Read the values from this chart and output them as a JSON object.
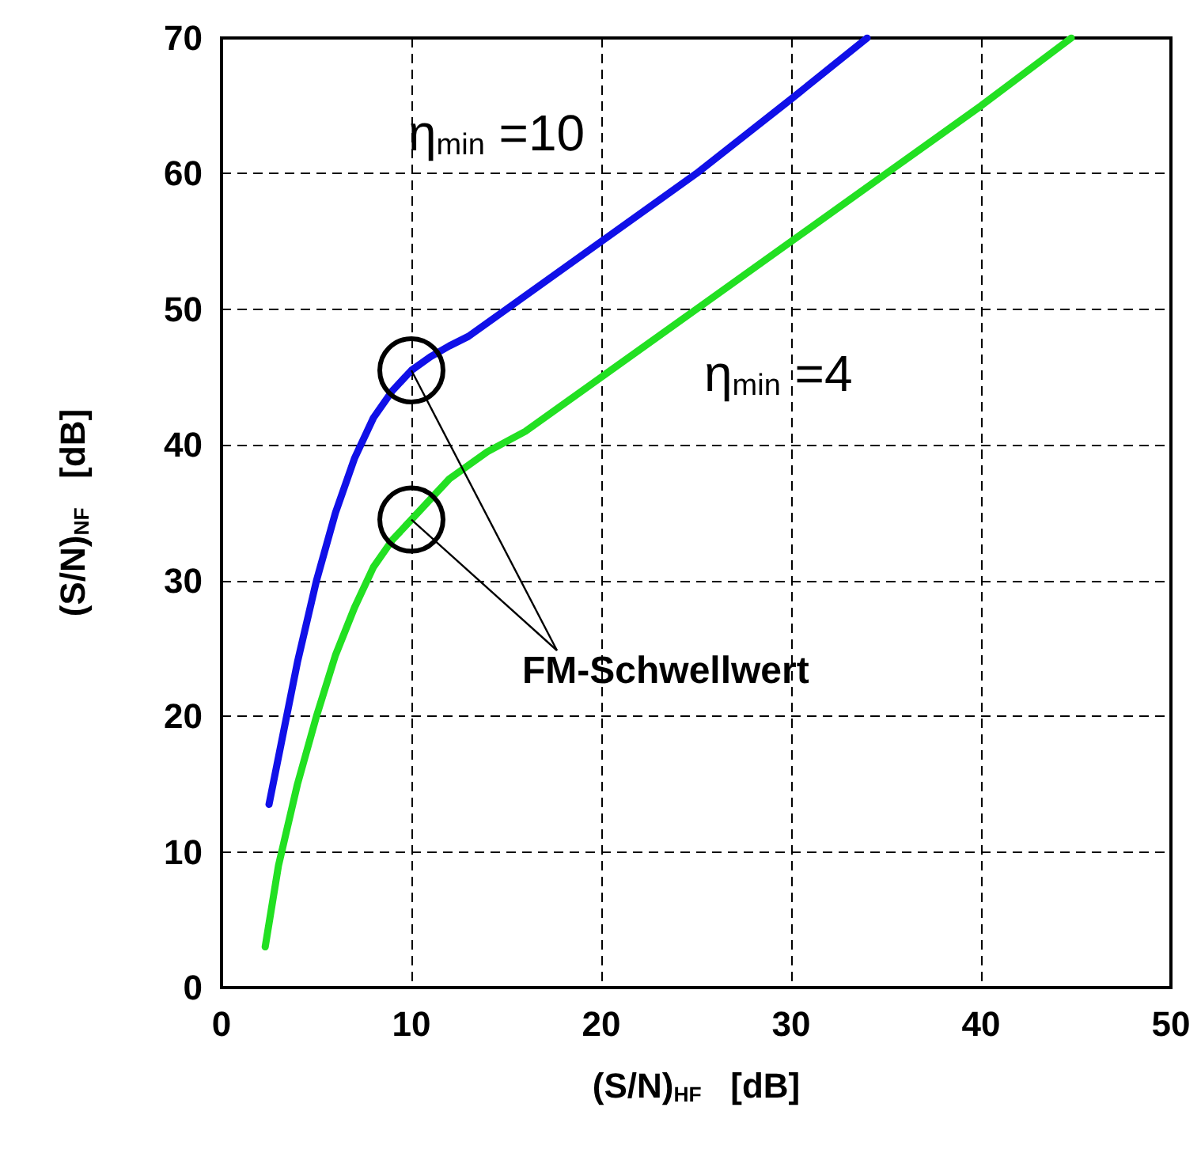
{
  "chart_data": {
    "type": "line",
    "xlabel": "(S/N)$_{HF}$   [dB]",
    "ylabel": "(S/N)$_{NF}$   [dB]",
    "xlim": [
      0,
      50
    ],
    "xticks": [
      0,
      10,
      20,
      30,
      40,
      50
    ],
    "ylim": [
      0,
      70
    ],
    "yticks": [
      0,
      10,
      20,
      30,
      40,
      50,
      60,
      70
    ],
    "grid": true,
    "legend": false,
    "marker": "none",
    "line_style": "solid",
    "series": [
      {
        "name": "η$_{min}$ =10",
        "color": "#1010e8",
        "x": [
          2.5,
          3,
          4,
          5,
          6,
          7,
          8,
          9,
          10,
          11,
          12,
          13,
          15,
          20,
          25,
          30,
          34
        ],
        "values": [
          13.5,
          17,
          24,
          30,
          35,
          39,
          42,
          44,
          45.5,
          46.5,
          47.3,
          48,
          50,
          55,
          60,
          65.5,
          70
        ]
      },
      {
        "name": "η$_{min}$ =4",
        "color": "#22e022",
        "x": [
          2.3,
          3,
          4,
          5,
          6,
          7,
          8,
          9,
          10,
          11,
          12,
          14,
          16,
          20,
          25,
          30,
          35,
          40,
          44.75
        ],
        "values": [
          3,
          9,
          15,
          20,
          24.5,
          28,
          31,
          33,
          34.5,
          36,
          37.5,
          39.5,
          41,
          45,
          50,
          55,
          60,
          65,
          70
        ]
      }
    ],
    "annotations": [
      {
        "text": "FM-Schwellwert",
        "x": 10,
        "y": 45.5
      }
    ]
  }
}
